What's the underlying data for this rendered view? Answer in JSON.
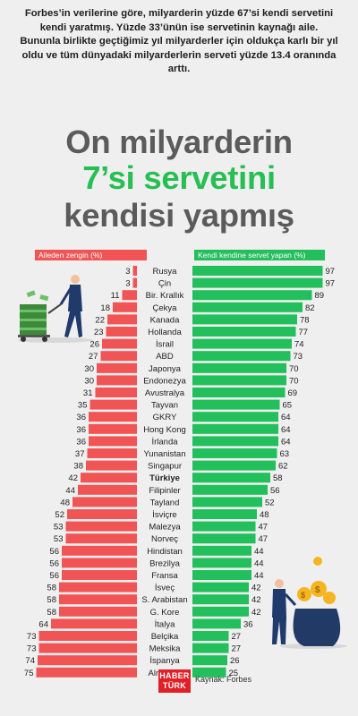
{
  "intro_text": "Forbes’in verilerine göre, milyarderin yüzde 67’si kendi servetini kendi yaratmış. Yüzde 33’ünün ise servetinin kaynağı aile. Bununla birlikte geçtiğimiz yıl milyarderler için oldukça karlı bir yıl oldu ve tüm dünyadaki milyarderlerin serveti yüzde 13.4 oranında arttı.",
  "headline": {
    "line1": "On milyarderin",
    "line2": "7’si servetini",
    "line3": "kendisi yapmış"
  },
  "colors": {
    "left": "#f05454",
    "right": "#22bf5c"
  },
  "chart_data": {
    "type": "bar",
    "orientation": "diverging-horizontal",
    "categories": [
      "Rusya",
      "Çin",
      "Bir. Krallık",
      "Çekya",
      "Kanada",
      "Hollanda",
      "İsrail",
      "ABD",
      "Japonya",
      "Endonezya",
      "Avustralya",
      "Tayvan",
      "GKRY",
      "Hong Kong",
      "İrlanda",
      "Yunanistan",
      "Singapur",
      "Türkiye",
      "Filipinler",
      "Tayland",
      "İsviçre",
      "Malezya",
      "Norveç",
      "Hindistan",
      "Brezilya",
      "Fransa",
      "İsveç",
      "S. Arabistan",
      "G. Kore",
      "İtalya",
      "Belçika",
      "Meksika",
      "İspanya",
      "Almanya"
    ],
    "highlight": "Türkiye",
    "series": [
      {
        "name": "Aileden zengin (%)",
        "side": "left",
        "color": "#f05454",
        "values": [
          3,
          3,
          11,
          18,
          22,
          23,
          26,
          27,
          30,
          30,
          31,
          35,
          36,
          36,
          36,
          37,
          38,
          42,
          44,
          48,
          52,
          53,
          53,
          56,
          56,
          56,
          58,
          58,
          58,
          64,
          73,
          73,
          74,
          75
        ]
      },
      {
        "name": "Kendi kendine servet yapan (%)",
        "side": "right",
        "color": "#22bf5c",
        "values": [
          97,
          97,
          89,
          82,
          78,
          77,
          74,
          73,
          70,
          70,
          69,
          65,
          64,
          64,
          64,
          63,
          62,
          58,
          56,
          52,
          48,
          47,
          47,
          44,
          44,
          44,
          42,
          42,
          42,
          36,
          27,
          27,
          26,
          25
        ]
      }
    ]
  },
  "footer": {
    "brand_line1": "HABER",
    "brand_line2": "TÜRK",
    "source": "Kaynak: Forbes"
  }
}
